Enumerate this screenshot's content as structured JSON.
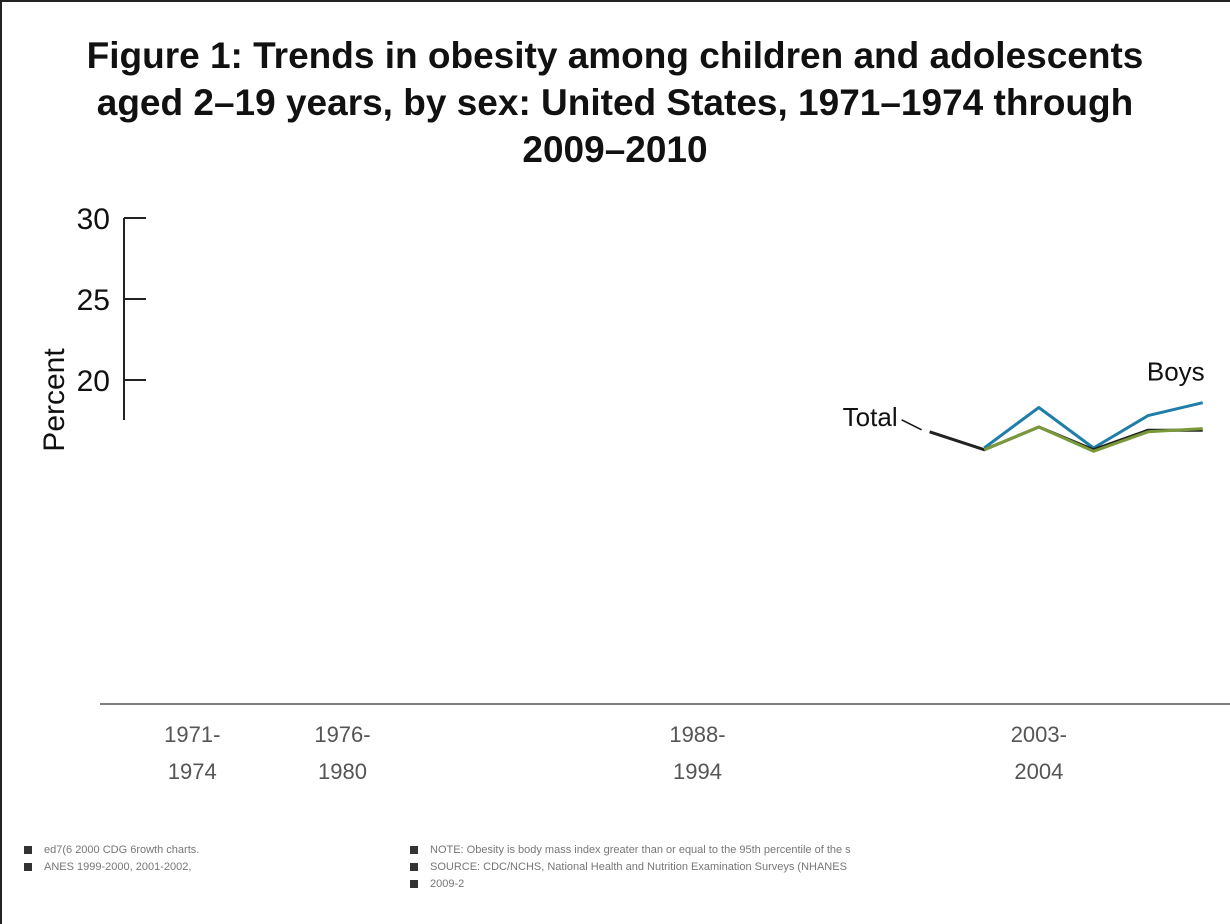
{
  "chart_data": {
    "type": "line",
    "title": "Figure 1: Trends in obesity among children and adolescents aged 2–19 years, by sex: United States, 1971–1974 through 2009–2010",
    "ylabel": "Percent",
    "ylim": [
      0,
      30
    ],
    "yticks": [
      20,
      25,
      30
    ],
    "x_tick_labels": [
      {
        "top": "1971-",
        "bottom": "1974",
        "x": 1972.5
      },
      {
        "top": "1976-",
        "bottom": "1980",
        "x": 1978
      },
      {
        "top": "1988-",
        "bottom": "1994",
        "x": 1991
      },
      {
        "top": "2003-",
        "bottom": "2004",
        "x": 2003.5
      }
    ],
    "x_range": [
      1970,
      2010.5
    ],
    "series": [
      {
        "name": "Boys",
        "color": "#1f7ea8",
        "x": [
          2001.5,
          2003.5,
          2005.5,
          2007.5,
          2009.5
        ],
        "values": [
          15.8,
          18.3,
          15.8,
          17.8,
          18.6
        ]
      },
      {
        "name": "Total",
        "color": "#222222",
        "x": [
          1999.5,
          2001.5,
          2003.5,
          2005.5,
          2007.5,
          2009.5
        ],
        "values": [
          16.8,
          15.7,
          17.1,
          15.7,
          16.9,
          16.9
        ]
      },
      {
        "name": "",
        "color": "#7a9a3a",
        "x": [
          2001.5,
          2003.5,
          2005.5,
          2007.5,
          2009.5
        ],
        "values": [
          15.7,
          17.1,
          15.6,
          16.8,
          17.0
        ]
      }
    ],
    "annotations": [
      {
        "text": "Boys"
      },
      {
        "text": "Total"
      }
    ]
  },
  "notes": {
    "left": [
      "ed7(6 2000 CDG 6rowth charts.",
      "ANES 1999-2000, 2001-2002,"
    ],
    "right": [
      "NOTE: Obesity is body mass index greater than or equal to the 95th percentile of the s",
      "SOURCE: CDC/NCHS, National Health and Nutrition Examination Surveys (NHANES",
      "2009-2"
    ]
  }
}
